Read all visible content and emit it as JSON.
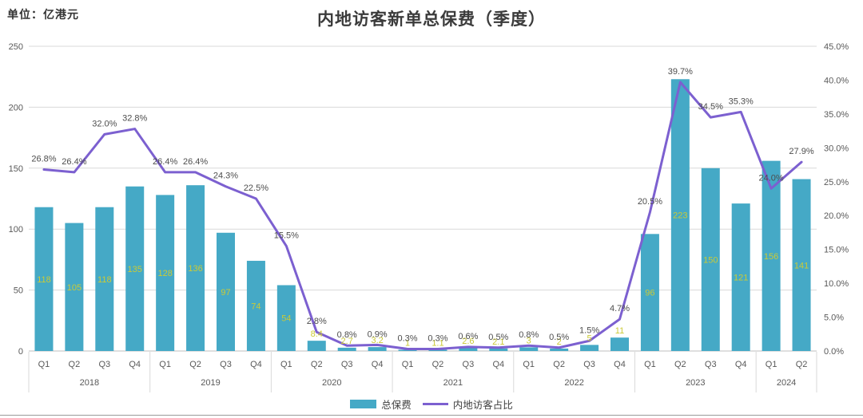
{
  "unit_label": "单位：亿港元",
  "title": "内地访客新单总保费（季度）",
  "legend": {
    "bar_label": "总保费",
    "line_label": "内地访客占比"
  },
  "colors": {
    "bar": "#45A9C6",
    "line": "#7C60D0",
    "bar_value_label": "#CBCA36",
    "percent_label": "#4d4d4d",
    "axis_text": "#595959",
    "grid": "#D9D9D9",
    "axis_line": "#BFBFBF",
    "separator": "#D9D9D9"
  },
  "chart_data": {
    "type": "bar",
    "combo": "bar+line",
    "title": "内地访客新单总保费（季度）",
    "unit": "亿港元",
    "grid": true,
    "legend_position": "bottom",
    "quarters": [
      "Q1",
      "Q2",
      "Q3",
      "Q4",
      "Q1",
      "Q2",
      "Q3",
      "Q4",
      "Q1",
      "Q2",
      "Q3",
      "Q4",
      "Q1",
      "Q2",
      "Q3",
      "Q4",
      "Q1",
      "Q2",
      "Q3",
      "Q4",
      "Q1",
      "Q2",
      "Q3",
      "Q4",
      "Q1",
      "Q2"
    ],
    "year_groups": [
      {
        "label": "2018",
        "count": 4
      },
      {
        "label": "2019",
        "count": 4
      },
      {
        "label": "2020",
        "count": 4
      },
      {
        "label": "2021",
        "count": 4
      },
      {
        "label": "2022",
        "count": 4
      },
      {
        "label": "2023",
        "count": 4
      },
      {
        "label": "2024",
        "count": 2
      }
    ],
    "series": [
      {
        "name": "总保费",
        "type": "bar",
        "axis": "left",
        "values": [
          118,
          105,
          118,
          135,
          128,
          136,
          97,
          74,
          54,
          8.4,
          2.7,
          3.2,
          1,
          1.1,
          2.6,
          2.1,
          3,
          2,
          5,
          11,
          96,
          223,
          150,
          121,
          156,
          141
        ],
        "labels": [
          "118",
          "105",
          "118",
          "135",
          "128",
          "136",
          "97",
          "74",
          "54",
          "8.4",
          "2.7",
          "3.2",
          "1",
          "1.1",
          "2.6",
          "2.1",
          "3",
          "2",
          "5",
          "11",
          "96",
          "223",
          "150",
          "121",
          "156",
          "141"
        ]
      },
      {
        "name": "内地访客占比",
        "type": "line",
        "axis": "right",
        "values": [
          26.8,
          26.4,
          32.0,
          32.8,
          26.4,
          26.4,
          24.3,
          22.5,
          15.5,
          2.8,
          0.8,
          0.9,
          0.3,
          0.3,
          0.6,
          0.5,
          0.8,
          0.5,
          1.5,
          4.7,
          20.5,
          39.7,
          34.5,
          35.3,
          24.0,
          27.9
        ],
        "labels": [
          "26.8%",
          "26.4%",
          "32.0%",
          "32.8%",
          "26.4%",
          "26.4%",
          "24.3%",
          "22.5%",
          "15.5%",
          "2.8%",
          "0.8%",
          "0.9%",
          "0.3%",
          "0.3%",
          "0.6%",
          "0.5%",
          "0.8%",
          "0.5%",
          "1.5%",
          "4.7%",
          "20.5%",
          "39.7%",
          "34.5%",
          "35.3%",
          "24.0%",
          "27.9%"
        ]
      }
    ],
    "left_axis": {
      "min": 0,
      "max": 250,
      "step": 50,
      "tick_labels": [
        "0",
        "50",
        "100",
        "150",
        "200",
        "250"
      ]
    },
    "right_axis": {
      "min": 0,
      "max": 45,
      "step": 5,
      "tick_labels": [
        "0.0%",
        "5.0%",
        "10.0%",
        "15.0%",
        "20.0%",
        "25.0%",
        "30.0%",
        "35.0%",
        "40.0%",
        "45.0%"
      ]
    }
  }
}
